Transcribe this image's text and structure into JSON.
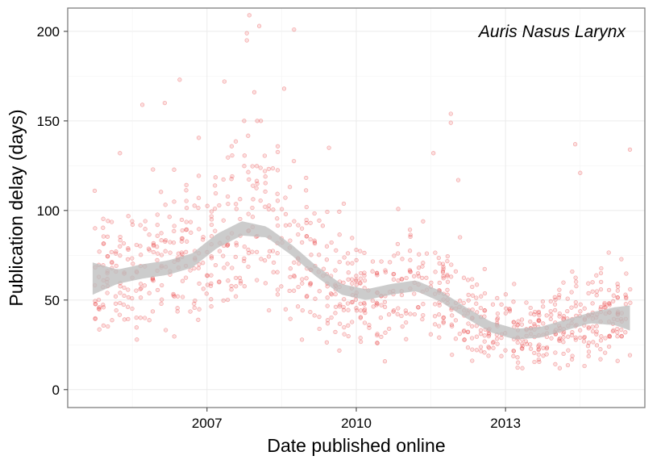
{
  "chart_data": {
    "type": "scatter",
    "title": "",
    "annotation": "Auris Nasus Larynx",
    "xlabel": "Date published online",
    "ylabel": "Publication delay (days)",
    "xlim": [
      2004.2,
      2015.8
    ],
    "ylim": [
      -10,
      213
    ],
    "x_ticks": [
      2007,
      2010,
      2013
    ],
    "x_tick_labels": [
      "2007",
      "2010",
      "2013"
    ],
    "y_ticks": [
      0,
      50,
      100,
      150,
      200
    ],
    "y_tick_labels": [
      "0",
      "50",
      "100",
      "150",
      "200"
    ],
    "grid": true,
    "point_color": "#e41a1c",
    "band_color": "#bebebe",
    "smooth_fit": {
      "x": [
        2004.7,
        2005.2,
        2005.7,
        2006.2,
        2006.7,
        2007.2,
        2007.7,
        2008.2,
        2008.7,
        2009.2,
        2009.7,
        2010.2,
        2010.7,
        2011.2,
        2011.7,
        2012.2,
        2012.7,
        2013.2,
        2013.7,
        2014.2,
        2014.7,
        2015.2,
        2015.5
      ],
      "y": [
        62,
        63,
        66,
        68,
        72,
        83,
        90,
        88,
        78,
        66,
        56,
        53,
        56,
        58,
        52,
        43,
        35,
        31,
        32,
        36,
        40,
        41,
        40
      ],
      "lower": [
        53,
        59,
        62,
        64,
        68,
        79,
        86,
        85,
        75,
        63,
        53,
        50,
        53,
        55,
        49,
        40,
        32,
        28,
        29,
        33,
        37,
        36,
        33
      ],
      "upper": [
        71,
        67,
        70,
        72,
        76,
        87,
        94,
        91,
        81,
        69,
        59,
        56,
        59,
        61,
        55,
        46,
        38,
        34,
        35,
        39,
        43,
        46,
        47
      ]
    },
    "scatter_hint": "Approximately 1000 semi-transparent points; representative sample generated from local trend",
    "outliers": [
      {
        "x": 2007.85,
        "y": 209
      },
      {
        "x": 2007.8,
        "y": 199
      },
      {
        "x": 2007.8,
        "y": 195
      },
      {
        "x": 2008.05,
        "y": 203
      },
      {
        "x": 2008.75,
        "y": 201
      },
      {
        "x": 2007.35,
        "y": 172
      },
      {
        "x": 2006.45,
        "y": 173
      },
      {
        "x": 2006.15,
        "y": 160
      },
      {
        "x": 2005.7,
        "y": 159
      },
      {
        "x": 2008.55,
        "y": 168
      },
      {
        "x": 2007.95,
        "y": 166
      },
      {
        "x": 2011.9,
        "y": 154
      },
      {
        "x": 2011.9,
        "y": 149
      },
      {
        "x": 2014.4,
        "y": 137
      },
      {
        "x": 2015.5,
        "y": 134
      },
      {
        "x": 2005.25,
        "y": 132
      },
      {
        "x": 2011.55,
        "y": 132
      },
      {
        "x": 2009.45,
        "y": 135
      },
      {
        "x": 2014.5,
        "y": 121
      },
      {
        "x": 2012.05,
        "y": 117
      }
    ]
  }
}
